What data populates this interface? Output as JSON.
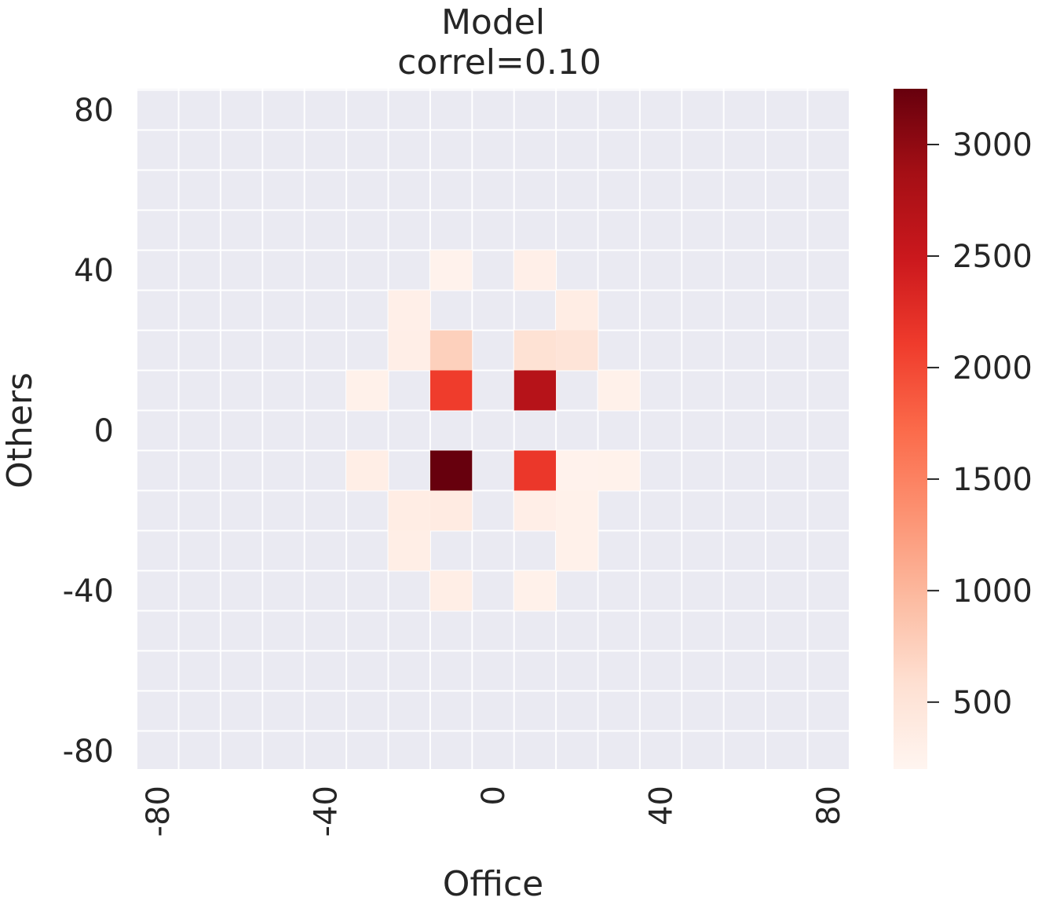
{
  "chart_data": {
    "type": "heatmap",
    "title": "Model",
    "subtitle": "correl=0.10",
    "xlabel": "Office",
    "ylabel": "Others",
    "xlim": [
      -85,
      85
    ],
    "ylim": [
      -85,
      85
    ],
    "bin_size": 10,
    "x_ticks": [
      "-80",
      "-40",
      "0",
      "40",
      "80"
    ],
    "y_ticks": [
      "80",
      "40",
      "0",
      "-40",
      "-80"
    ],
    "colorbar_ticks": [
      "500",
      "1000",
      "1500",
      "2000",
      "2500",
      "3000"
    ],
    "colorbar_range": [
      200,
      3250
    ],
    "colormap": [
      "#fff5f0",
      "#fee0d2",
      "#fcbba1",
      "#fc9272",
      "#fb6a4a",
      "#ef3b2c",
      "#cb181d",
      "#a50f15",
      "#67000d"
    ],
    "background": "#eaeaf2",
    "grid": true,
    "cells": [
      {
        "x": -10,
        "y": 40,
        "value": 250
      },
      {
        "x": 10,
        "y": 40,
        "value": 300
      },
      {
        "x": -20,
        "y": 30,
        "value": 300
      },
      {
        "x": 20,
        "y": 30,
        "value": 350
      },
      {
        "x": -20,
        "y": 20,
        "value": 320
      },
      {
        "x": -10,
        "y": 20,
        "value": 750
      },
      {
        "x": 10,
        "y": 20,
        "value": 550
      },
      {
        "x": 20,
        "y": 20,
        "value": 500
      },
      {
        "x": -30,
        "y": 10,
        "value": 280
      },
      {
        "x": -10,
        "y": 10,
        "value": 2100
      },
      {
        "x": 10,
        "y": 10,
        "value": 2700
      },
      {
        "x": 30,
        "y": 10,
        "value": 280
      },
      {
        "x": -30,
        "y": -10,
        "value": 330
      },
      {
        "x": -10,
        "y": -10,
        "value": 3250
      },
      {
        "x": 10,
        "y": -10,
        "value": 2150
      },
      {
        "x": 20,
        "y": -10,
        "value": 250
      },
      {
        "x": 30,
        "y": -10,
        "value": 260
      },
      {
        "x": -20,
        "y": -20,
        "value": 350
      },
      {
        "x": -10,
        "y": -20,
        "value": 380
      },
      {
        "x": 10,
        "y": -20,
        "value": 320
      },
      {
        "x": 20,
        "y": -20,
        "value": 270
      },
      {
        "x": -20,
        "y": -30,
        "value": 330
      },
      {
        "x": 20,
        "y": -30,
        "value": 280
      },
      {
        "x": -10,
        "y": -40,
        "value": 330
      },
      {
        "x": 10,
        "y": -40,
        "value": 270
      }
    ]
  }
}
